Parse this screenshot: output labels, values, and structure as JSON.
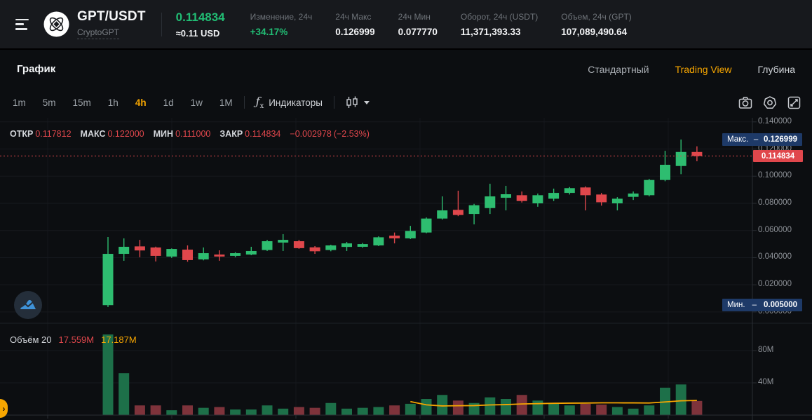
{
  "colors": {
    "up": "#2EBD70",
    "down": "#E0474C",
    "vol_up": "#1D7049",
    "vol_down": "#7E333B",
    "accent": "#F7A600",
    "badge_bg": "#1E3A68",
    "grid": "#16191E",
    "axis": "#2A2E34"
  },
  "icons": {
    "menu": "hamburger-icon",
    "logo": "cryptogpt-logo",
    "indicators": "fx-icon",
    "chart_style": "candles-icon",
    "caret": "chevron-down-icon",
    "screenshot": "camera-icon",
    "settings": "gear-icon",
    "fullscreen": "expand-icon",
    "chart_type": "mountain-chart-icon",
    "panel_chevron": "›",
    "fx_f": "ƒ",
    "fx_x": "x"
  },
  "header": {
    "pair": "GPT/USDT",
    "token_name": "CryptoGPT",
    "last_price": "0.114834",
    "fiat_equiv": "≈0.11 USD",
    "stats": [
      {
        "label": "Изменение, 24ч",
        "value": "+34.17%"
      },
      {
        "label": "24ч Макс",
        "value": "0.126999"
      },
      {
        "label": "24ч Мин",
        "value": "0.077770"
      },
      {
        "label": "Оборот, 24ч (USDT)",
        "value": "11,371,393.33"
      },
      {
        "label": "Объем, 24ч (GPT)",
        "value": "107,089,490.64"
      }
    ]
  },
  "view_tabs": {
    "title": "График",
    "modes": [
      {
        "label": "Стандартный",
        "active": false
      },
      {
        "label": "Trading View",
        "active": true
      },
      {
        "label": "Глубина",
        "active": false
      }
    ]
  },
  "toolbar": {
    "timeframes": [
      {
        "label": "1m",
        "active": false
      },
      {
        "label": "5m",
        "active": false
      },
      {
        "label": "15m",
        "active": false
      },
      {
        "label": "1h",
        "active": false
      },
      {
        "label": "4h",
        "active": true
      },
      {
        "label": "1d",
        "active": false
      },
      {
        "label": "1w",
        "active": false
      },
      {
        "label": "1M",
        "active": false
      }
    ],
    "indicators_label": "Индикаторы"
  },
  "ohlc_legend": {
    "open_label": "ОТКР",
    "open": "0.117812",
    "high_label": "МАКС",
    "high": "0.122000",
    "low_label": "МИН",
    "low": "0.111000",
    "close_label": "ЗАКР",
    "close": "0.114834",
    "change_abs": "−0.002978",
    "change_pct": "(−2.53%)"
  },
  "volume_legend": {
    "label": "Объём",
    "period": "20",
    "current": "17.559M",
    "ma": "17.187M"
  },
  "badges": {
    "max_label": "Макс.",
    "max_value": "0.126999",
    "min_label": "Мин.",
    "min_value": "0.005000",
    "dash": "–",
    "last_price": "0.114834"
  },
  "chart_data": {
    "type": "candlestick",
    "symbol": "GPT/USDT",
    "interval": "4h",
    "last_price": 0.114834,
    "session_high": 0.126999,
    "session_low": 0.005,
    "volume_ma_period": 20,
    "price_axis": {
      "min": 0,
      "max": 0.143,
      "ticks": [
        {
          "value": 0.14,
          "label": "0.140000"
        },
        {
          "value": 0.12,
          "label": "0.120000"
        },
        {
          "value": 0.1,
          "label": "0.100000"
        },
        {
          "value": 0.08,
          "label": "0.080000"
        },
        {
          "value": 0.06,
          "label": "0.060000"
        },
        {
          "value": 0.04,
          "label": "0.040000"
        },
        {
          "value": 0.02,
          "label": "0.020000"
        },
        {
          "value": 0.0,
          "label": "0.000000"
        }
      ]
    },
    "volume_axis": {
      "unit": "M",
      "ticks": [
        {
          "value": 80,
          "label": "80M"
        },
        {
          "value": 40,
          "label": "40M"
        }
      ]
    },
    "candles_format": [
      "open",
      "high",
      "low",
      "close",
      "volume_m"
    ],
    "candles": [
      [
        0.005,
        0.0552,
        0.0036,
        0.0428,
        100.0
      ],
      [
        0.0428,
        0.0542,
        0.0377,
        0.048,
        52.0
      ],
      [
        0.0483,
        0.0531,
        0.0403,
        0.0453,
        12.0
      ],
      [
        0.0475,
        0.0481,
        0.0372,
        0.0413,
        12.0
      ],
      [
        0.0408,
        0.0468,
        0.0398,
        0.0464,
        6.0
      ],
      [
        0.0459,
        0.049,
        0.037,
        0.0382,
        12.0
      ],
      [
        0.0387,
        0.0475,
        0.038,
        0.0433,
        9.0
      ],
      [
        0.0423,
        0.0454,
        0.0377,
        0.0408,
        10.0
      ],
      [
        0.0413,
        0.044,
        0.0403,
        0.0433,
        7.0
      ],
      [
        0.0423,
        0.048,
        0.0418,
        0.0449,
        7.0
      ],
      [
        0.0456,
        0.0531,
        0.0449,
        0.0521,
        12.0
      ],
      [
        0.0511,
        0.0573,
        0.0449,
        0.0531,
        8.0
      ],
      [
        0.0521,
        0.0531,
        0.0465,
        0.047,
        10.0
      ],
      [
        0.0476,
        0.0485,
        0.0428,
        0.0447,
        9.0
      ],
      [
        0.0456,
        0.0495,
        0.0447,
        0.049,
        15.0
      ],
      [
        0.0479,
        0.0516,
        0.0449,
        0.0505,
        8.0
      ],
      [
        0.048,
        0.0508,
        0.0473,
        0.05,
        9.0
      ],
      [
        0.049,
        0.0557,
        0.0485,
        0.055,
        10.0
      ],
      [
        0.0562,
        0.0585,
        0.0505,
        0.0542,
        12.0
      ],
      [
        0.0542,
        0.0634,
        0.0537,
        0.0597,
        14.0
      ],
      [
        0.0585,
        0.0696,
        0.058,
        0.0688,
        20.0
      ],
      [
        0.0688,
        0.0851,
        0.068,
        0.0748,
        25.0
      ],
      [
        0.0752,
        0.0893,
        0.0706,
        0.0714,
        18.0
      ],
      [
        0.0722,
        0.0796,
        0.0645,
        0.0786,
        15.0
      ],
      [
        0.0765,
        0.0944,
        0.0722,
        0.0851,
        22.0
      ],
      [
        0.0841,
        0.0929,
        0.0748,
        0.0867,
        20.0
      ],
      [
        0.086,
        0.0887,
        0.0806,
        0.0817,
        25.0
      ],
      [
        0.08,
        0.0872,
        0.0775,
        0.086,
        18.0
      ],
      [
        0.0834,
        0.0908,
        0.0817,
        0.0877,
        15.0
      ],
      [
        0.0877,
        0.092,
        0.0865,
        0.0912,
        12.0
      ],
      [
        0.0917,
        0.0925,
        0.0748,
        0.086,
        14.0
      ],
      [
        0.0865,
        0.0877,
        0.0783,
        0.0808,
        13.0
      ],
      [
        0.08,
        0.0846,
        0.0748,
        0.0834,
        10.0
      ],
      [
        0.0848,
        0.0887,
        0.0825,
        0.0872,
        8.0
      ],
      [
        0.086,
        0.098,
        0.0851,
        0.0972,
        12.0
      ],
      [
        0.0972,
        0.1187,
        0.0963,
        0.1084,
        34.0
      ],
      [
        0.1075,
        0.126999,
        0.1015,
        0.117812,
        38.0
      ],
      [
        0.117812,
        0.122,
        0.111,
        0.114834,
        17.56
      ]
    ]
  }
}
